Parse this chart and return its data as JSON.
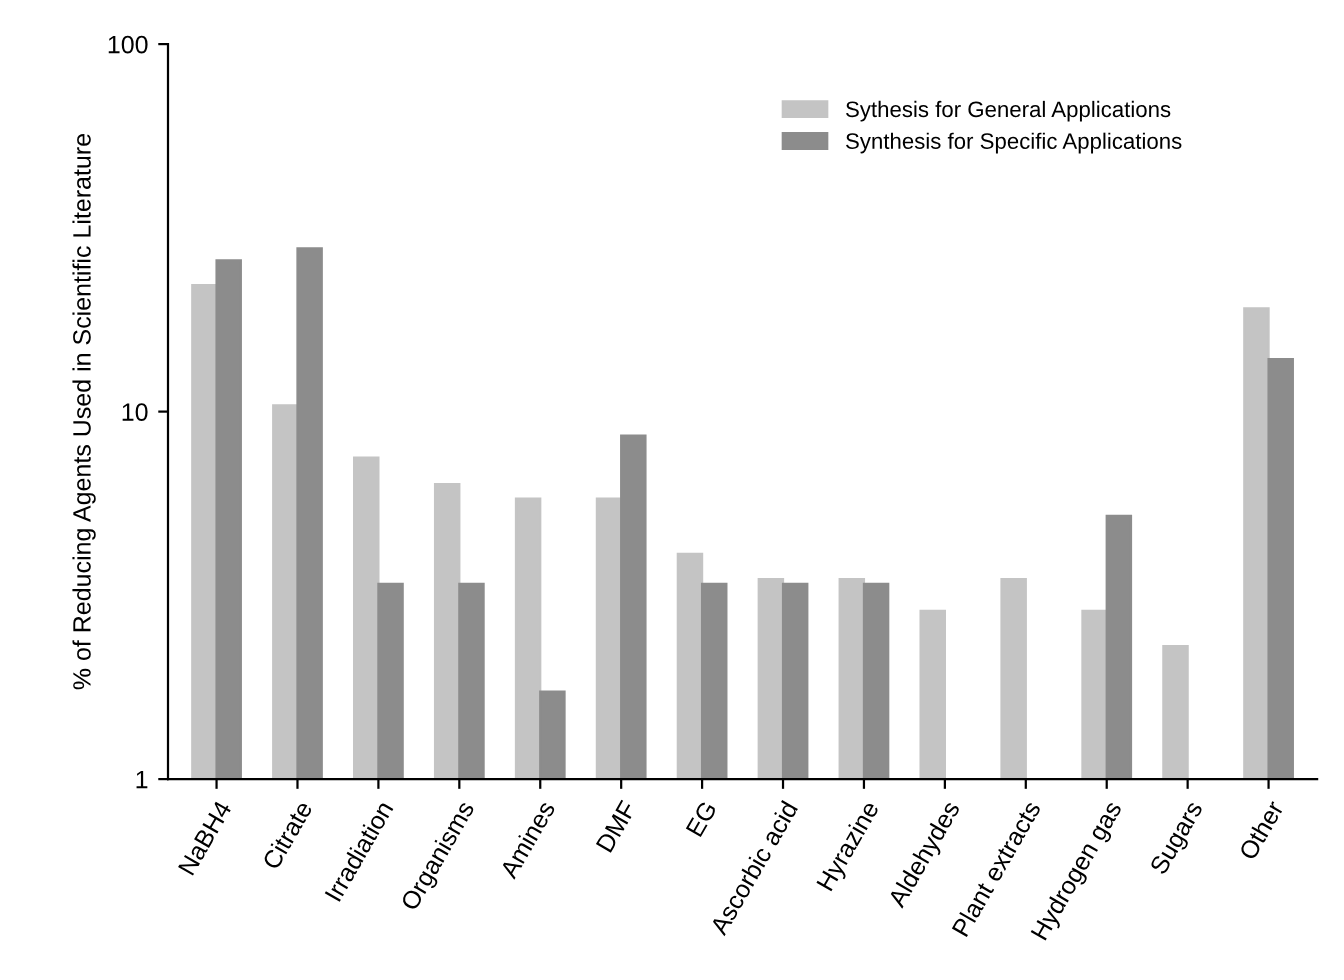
{
  "chart_data": {
    "type": "bar",
    "ylabel": "% of Reducing Agents Used in Scientific Literature",
    "categories": [
      "NaBH4",
      "Citrate",
      "Irradiation",
      "Organisms",
      "Amines",
      "DMF",
      "EG",
      "Ascorbic acid",
      "Hyrazine",
      "Aldehydes",
      "Plant extracts",
      "Hydrogen gas",
      "Sugars",
      "Other"
    ],
    "series": [
      {
        "name": "Sythesis for General Applications",
        "color": "#c4c4c4",
        "values": [
          22.1,
          10.4,
          7.5,
          6.35,
          5.8,
          5.8,
          4.1,
          3.5,
          3.5,
          2.87,
          3.5,
          2.87,
          2.3,
          19.1
        ]
      },
      {
        "name": "Synthesis for Specific Applications",
        "color": "#8c8c8c",
        "values": [
          25.8,
          27.8,
          3.4,
          3.4,
          1.73,
          8.6,
          3.4,
          3.4,
          3.4,
          null,
          null,
          5.2,
          null,
          13.9
        ]
      }
    ],
    "log": "y",
    "ylim": [
      1,
      100
    ],
    "yticks": [
      1,
      10,
      100
    ],
    "legend": "top right",
    "grid": false
  }
}
